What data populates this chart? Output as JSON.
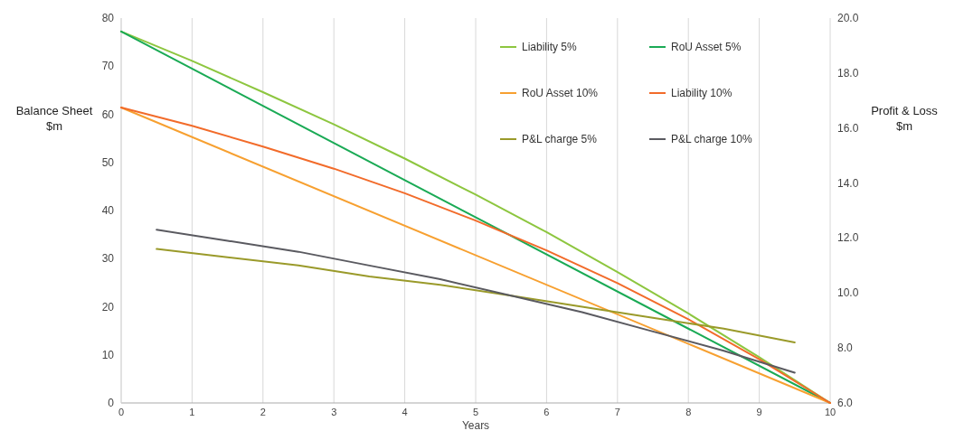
{
  "chart_data": {
    "type": "line",
    "xlabel": "Years",
    "ylabel": "Balance Sheet\n$m",
    "y2label": "Profit & Loss\n$m",
    "xlim": [
      0,
      10
    ],
    "xticks": [
      0,
      1,
      2,
      3,
      4,
      5,
      6,
      7,
      8,
      9,
      10
    ],
    "ylim": [
      0,
      80
    ],
    "yticks": [
      0,
      10,
      20,
      30,
      40,
      50,
      60,
      70,
      80
    ],
    "y2lim": [
      6,
      20
    ],
    "y2ticks": [
      {
        "value": 6,
        "label": "6.0"
      },
      {
        "value": 8,
        "label": "8.0"
      },
      {
        "value": 10,
        "label": "10.0"
      },
      {
        "value": 12,
        "label": "12.0"
      },
      {
        "value": 14,
        "label": "14.0"
      },
      {
        "value": 16,
        "label": "16.0"
      },
      {
        "value": 18,
        "label": "18.0"
      },
      {
        "value": 20,
        "label": "20.0"
      }
    ],
    "grid": "x",
    "legend": "top right",
    "marker": "none",
    "line_style": "solid",
    "series": [
      {
        "name": "Liability 5%",
        "color": "#8dc63f",
        "x": [
          0,
          1,
          2,
          3,
          4,
          5,
          6,
          7,
          8,
          9,
          10
        ],
        "values": [
          77.2,
          71.1,
          64.6,
          57.9,
          50.8,
          43.3,
          35.5,
          27.2,
          18.6,
          9.5,
          0
        ]
      },
      {
        "name": "RoU Asset 5%",
        "color": "#1aaa55",
        "x": [
          0,
          10
        ],
        "values": [
          77.2,
          0
        ]
      },
      {
        "name": "RoU Asset 10%",
        "color": "#f7a030",
        "x": [
          0,
          10
        ],
        "values": [
          61.4,
          0
        ]
      },
      {
        "name": "Liability 10%",
        "color": "#f26b2a",
        "x": [
          0,
          1,
          2,
          3,
          4,
          5,
          6,
          7,
          8,
          9,
          10
        ],
        "values": [
          61.4,
          57.6,
          53.3,
          48.7,
          43.6,
          37.9,
          31.7,
          24.9,
          17.4,
          9.1,
          0
        ]
      },
      {
        "name": "P&L charge 5%",
        "color": "#9a9a2a",
        "axis": "y2",
        "x": [
          0.5,
          1.5,
          2.5,
          3.5,
          4.5,
          5.5,
          6.5,
          7.5,
          8.5,
          9.5
        ],
        "values": [
          11.6,
          11.3,
          11.0,
          10.6,
          10.3,
          9.9,
          9.5,
          9.1,
          8.7,
          8.2
        ]
      },
      {
        "name": "P&L charge 10%",
        "color": "#5a5a60",
        "axis": "y2",
        "x": [
          0.5,
          1.5,
          2.5,
          3.5,
          4.5,
          5.5,
          6.5,
          7.5,
          8.5,
          9.5
        ],
        "values": [
          12.3,
          11.9,
          11.5,
          11.0,
          10.5,
          9.9,
          9.3,
          8.6,
          7.9,
          7.1
        ]
      }
    ]
  }
}
